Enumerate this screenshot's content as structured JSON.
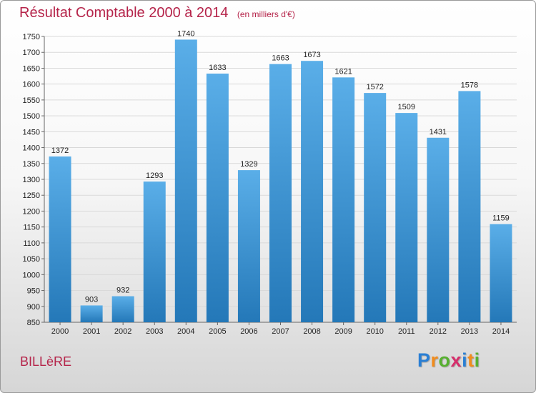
{
  "title": "Résultat Comptable 2000 à 2014",
  "unit_note": "(en milliers d'€)",
  "commune": "BILLèRE",
  "logo": {
    "letters": [
      "P",
      "r",
      "o",
      "x",
      "i",
      "t",
      "i"
    ],
    "colors": [
      "#2a7fd4",
      "#f28c1c",
      "#57b030",
      "#d62e6b",
      "#2a7fd4",
      "#f28c1c",
      "#57b030"
    ]
  },
  "colors": {
    "accent": "#b5244a",
    "bar_top": "#5aaee8",
    "bar_bottom": "#2478b8"
  },
  "chart_data": {
    "type": "bar",
    "title": "Résultat Comptable 2000 à 2014",
    "xlabel": "",
    "ylabel": "",
    "ylim": [
      850,
      1750
    ],
    "yticks": [
      850,
      900,
      950,
      1000,
      1050,
      1100,
      1150,
      1200,
      1250,
      1300,
      1350,
      1400,
      1450,
      1500,
      1550,
      1600,
      1650,
      1700,
      1750
    ],
    "grid": true,
    "categories": [
      "2000",
      "2001",
      "2002",
      "2003",
      "2004",
      "2005",
      "2006",
      "2007",
      "2008",
      "2009",
      "2010",
      "2011",
      "2012",
      "2013",
      "2014"
    ],
    "values": [
      1372,
      903,
      932,
      1293,
      1740,
      1633,
      1329,
      1663,
      1673,
      1621,
      1572,
      1509,
      1431,
      1578,
      1159
    ]
  }
}
